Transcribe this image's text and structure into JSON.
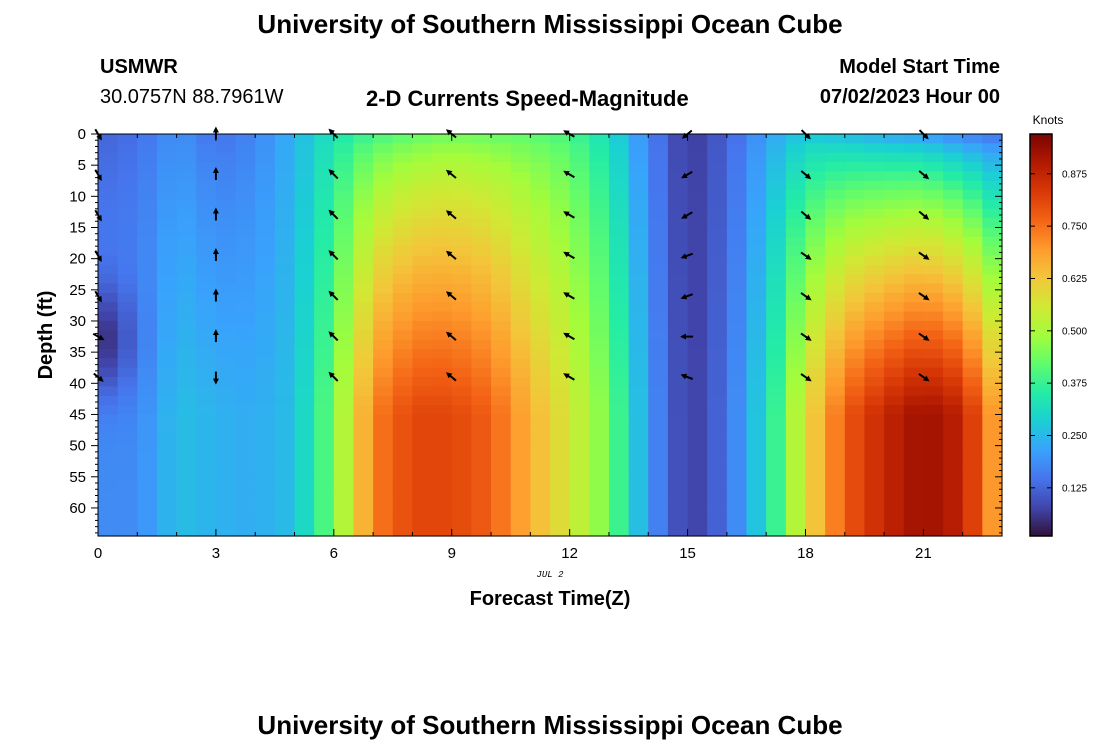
{
  "page": {
    "title": "University of Southern Mississippi Ocean Cube",
    "station_name": "USMWR",
    "station_coords": "30.0757N  88.7961W",
    "subtitle": "2-D Currents Speed-Magnitude",
    "model_start_label": "Model Start Time",
    "model_start_value": "07/02/2023 Hour 00",
    "date_stamp": "JUL 2",
    "footer_title": "University of Southern Mississippi Ocean Cube"
  },
  "chart_data": {
    "type": "heatmap",
    "title": "2-D Currents Speed-Magnitude",
    "xlabel": "Forecast Time(Z)",
    "ylabel": "Depth (ft)",
    "xlim": [
      0,
      23
    ],
    "ylim": [
      64.5,
      0
    ],
    "x_ticks": [
      0,
      3,
      6,
      9,
      12,
      15,
      18,
      21
    ],
    "y_ticks": [
      0,
      5,
      10,
      15,
      20,
      25,
      30,
      35,
      40,
      45,
      50,
      55,
      60
    ],
    "colorbar": {
      "label": "Knots",
      "range": [
        0.01,
        0.97
      ],
      "ticks": [
        0.125,
        0.25,
        0.375,
        0.5,
        0.625,
        0.75,
        0.875
      ],
      "tick_labels": [
        "0.125",
        "0.250",
        "0.375",
        "0.500",
        "0.625",
        "0.750",
        "0.875"
      ],
      "colormap": [
        "#30123b",
        "#4145ab",
        "#4675ed",
        "#39a2fc",
        "#1bcfd4",
        "#24eca6",
        "#61fc6c",
        "#a4fc3b",
        "#d1e834",
        "#f3c63a",
        "#fe9b2d",
        "#f36315",
        "#d93806",
        "#b11901",
        "#7a0403"
      ]
    },
    "hours": [
      0,
      1,
      2,
      3,
      4,
      5,
      6,
      7,
      8,
      9,
      10,
      11,
      12,
      13,
      14,
      15,
      16,
      17,
      18,
      19,
      20,
      21,
      22,
      23
    ],
    "depth_profile_note": "speed (knots) per forecast hour: surface value and bottom value",
    "speed_surface": [
      0.12,
      0.14,
      0.19,
      0.14,
      0.17,
      0.24,
      0.33,
      0.38,
      0.41,
      0.43,
      0.42,
      0.41,
      0.39,
      0.31,
      0.17,
      0.06,
      0.12,
      0.21,
      0.27,
      0.24,
      0.21,
      0.19,
      0.15,
      0.13
    ],
    "speed_bottom": [
      0.18,
      0.18,
      0.26,
      0.24,
      0.23,
      0.26,
      0.44,
      0.73,
      0.81,
      0.81,
      0.77,
      0.66,
      0.56,
      0.44,
      0.2,
      0.06,
      0.14,
      0.31,
      0.58,
      0.78,
      0.87,
      0.93,
      0.88,
      0.64
    ],
    "low_pocket": {
      "hour": 0,
      "depth": 33,
      "speed": 0.03
    },
    "vectors": {
      "note": "arrow direction in degrees clockwise from north",
      "hours": [
        0,
        3,
        6,
        9,
        12,
        15,
        18,
        21
      ],
      "depths": [
        0,
        6.5,
        13,
        19.5,
        26,
        32.5,
        39
      ],
      "directions": [
        [
          150,
          150,
          150,
          150,
          150,
          120,
          130
        ],
        [
          0,
          0,
          0,
          0,
          0,
          0,
          180
        ],
        [
          315,
          315,
          315,
          315,
          315,
          315,
          315
        ],
        [
          310,
          310,
          310,
          310,
          310,
          310,
          310
        ],
        [
          300,
          300,
          300,
          300,
          300,
          300,
          300
        ],
        [
          230,
          240,
          240,
          250,
          250,
          270,
          290
        ],
        [
          135,
          130,
          130,
          125,
          125,
          125,
          125
        ],
        [
          135,
          130,
          130,
          125,
          125,
          125,
          125
        ]
      ]
    }
  }
}
